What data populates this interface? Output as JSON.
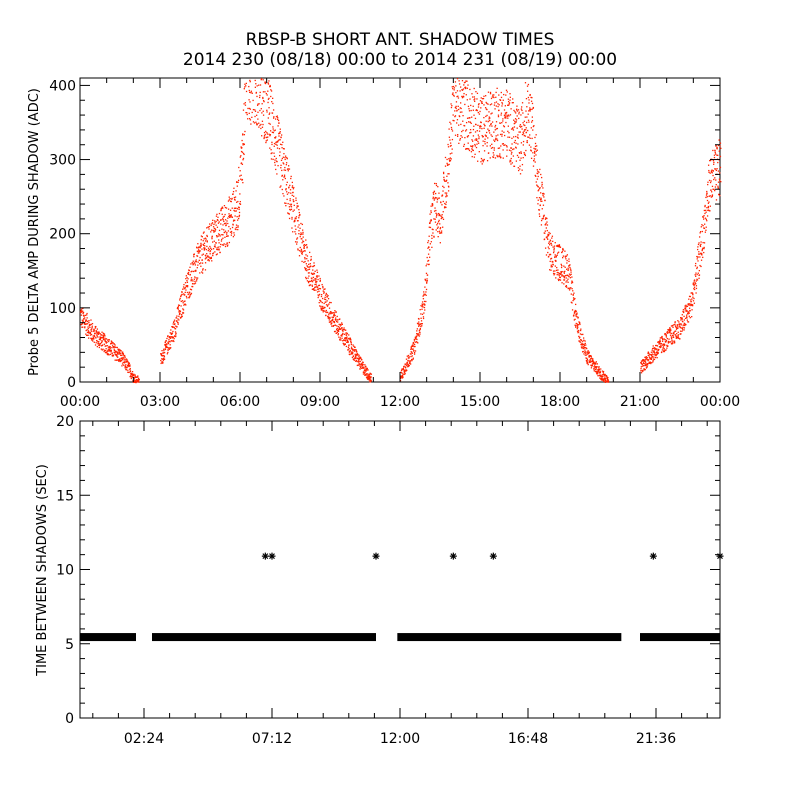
{
  "chart_data": [
    {
      "type": "scatter",
      "title": "RBSP-B SHORT ANT. SHADOW TIMES",
      "subtitle": "2014 230 (08/18) 00:00 to 2014 231 (08/19) 00:00",
      "ylabel": "Probe 5 DELTA AMP DURING SHADOW (ADC)",
      "xlim": [
        0,
        24
      ],
      "ylim": [
        0,
        410
      ],
      "x_tick_labels": [
        "00:00",
        "03:00",
        "06:00",
        "09:00",
        "12:00",
        "15:00",
        "18:00",
        "21:00",
        "00:00"
      ],
      "y_tick_labels": [
        "0",
        "100",
        "200",
        "300",
        "400"
      ],
      "y_ticks": [
        0,
        100,
        200,
        300,
        400
      ],
      "marker_color": "#ff2200",
      "series": [
        {
          "profile": [
            [
              0.0,
              90
            ],
            [
              0.5,
              65
            ],
            [
              1.0,
              50
            ],
            [
              1.5,
              35
            ],
            [
              1.8,
              20
            ],
            [
              2.0,
              6
            ],
            [
              2.2,
              2
            ],
            [
              3.0,
              30
            ],
            [
              3.5,
              70
            ],
            [
              4.0,
              130
            ],
            [
              4.5,
              170
            ],
            [
              5.0,
              195
            ],
            [
              5.5,
              215
            ],
            [
              5.9,
              240
            ],
            [
              6.1,
              320
            ],
            [
              6.2,
              410
            ],
            [
              6.6,
              395
            ],
            [
              7.0,
              370
            ],
            [
              7.5,
              300
            ],
            [
              8.0,
              230
            ],
            [
              8.5,
              160
            ],
            [
              9.0,
              120
            ],
            [
              9.5,
              85
            ],
            [
              10.0,
              55
            ],
            [
              10.5,
              25
            ],
            [
              10.9,
              5
            ],
            [
              12.0,
              8
            ],
            [
              12.5,
              45
            ],
            [
              12.9,
              110
            ],
            [
              13.1,
              200
            ],
            [
              13.3,
              240
            ],
            [
              13.5,
              220
            ],
            [
              13.8,
              300
            ],
            [
              14.0,
              380
            ],
            [
              14.5,
              360
            ],
            [
              15.0,
              340
            ],
            [
              15.5,
              350
            ],
            [
              16.0,
              350
            ],
            [
              16.5,
              320
            ],
            [
              16.8,
              380
            ],
            [
              17.2,
              260
            ],
            [
              17.6,
              175
            ],
            [
              18.0,
              160
            ],
            [
              18.3,
              150
            ],
            [
              18.6,
              80
            ],
            [
              19.0,
              35
            ],
            [
              19.5,
              12
            ],
            [
              19.8,
              2
            ],
            [
              21.0,
              20
            ],
            [
              21.5,
              40
            ],
            [
              22.0,
              58
            ],
            [
              22.5,
              75
            ],
            [
              22.9,
              105
            ],
            [
              23.3,
              190
            ],
            [
              23.6,
              270
            ],
            [
              24.0,
              290
            ]
          ],
          "gaps": [
            [
              2.2,
              3.0
            ],
            [
              10.9,
              12.0
            ],
            [
              19.8,
              21.0
            ]
          ]
        }
      ]
    },
    {
      "type": "scatter",
      "ylabel": "TIME BETWEEN SHADOWS (SEC)",
      "xlim": [
        0,
        24
      ],
      "ylim": [
        0,
        20
      ],
      "x_tick_labels": [
        "02:24",
        "07:12",
        "12:00",
        "16:48",
        "21:36"
      ],
      "x_ticks": [
        2.4,
        7.2,
        12.0,
        16.8,
        21.6
      ],
      "y_tick_labels": [
        "0",
        "5",
        "10",
        "15",
        "20"
      ],
      "y_ticks": [
        0,
        5,
        10,
        15,
        20
      ],
      "marker": "*",
      "marker_color": "#000000",
      "baseline_value": 5.45,
      "baseline_segments": [
        [
          0.0,
          2.1
        ],
        [
          2.7,
          11.1
        ],
        [
          11.9,
          20.3
        ],
        [
          21.0,
          24.0
        ]
      ],
      "outliers": [
        {
          "x": 6.95,
          "y": 10.9
        },
        {
          "x": 7.2,
          "y": 10.9
        },
        {
          "x": 11.1,
          "y": 10.9
        },
        {
          "x": 14.0,
          "y": 10.9
        },
        {
          "x": 15.5,
          "y": 10.9
        },
        {
          "x": 21.5,
          "y": 10.9
        },
        {
          "x": 24.0,
          "y": 10.9
        }
      ]
    }
  ]
}
